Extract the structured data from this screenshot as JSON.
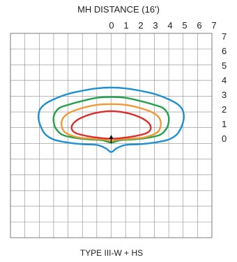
{
  "chart_data": {
    "type": "line",
    "title": "MH DISTANCE (16')",
    "caption": "TYPE III-W  +  HS",
    "x_ticks": [
      "0",
      "1",
      "2",
      "3",
      "4",
      "5",
      "6",
      "7"
    ],
    "y_ticks": [
      "7",
      "6",
      "5",
      "4",
      "3",
      "2",
      "1",
      "0"
    ],
    "xlim": [
      -7,
      7
    ],
    "ylim": [
      -6,
      7
    ],
    "grid": true,
    "fixture_position": [
      0,
      0.5
    ],
    "series": [
      {
        "color": "#1e8fd0",
        "points": [
          [
            0,
            3.55
          ],
          [
            1,
            3.5
          ],
          [
            2,
            3.35
          ],
          [
            3,
            3.15
          ],
          [
            4,
            2.8
          ],
          [
            4.6,
            2.5
          ],
          [
            4.95,
            2.15
          ],
          [
            5.05,
            1.7
          ],
          [
            4.95,
            1.2
          ],
          [
            4.6,
            0.6
          ],
          [
            4.0,
            0.25
          ],
          [
            3.0,
            0.05
          ],
          [
            2.0,
            -0.05
          ],
          [
            1.0,
            -0.1
          ],
          [
            0.4,
            -0.3
          ],
          [
            0,
            -0.55
          ],
          [
            -0.4,
            -0.3
          ],
          [
            -1.0,
            -0.1
          ],
          [
            -2.0,
            -0.05
          ],
          [
            -3.0,
            0.05
          ],
          [
            -4.0,
            0.25
          ],
          [
            -4.6,
            0.6
          ],
          [
            -4.95,
            1.2
          ],
          [
            -5.05,
            1.7
          ],
          [
            -4.95,
            2.15
          ],
          [
            -4.6,
            2.5
          ],
          [
            -4.0,
            2.8
          ],
          [
            -3.0,
            3.15
          ],
          [
            -2.0,
            3.35
          ],
          [
            -1.0,
            3.5
          ]
        ]
      },
      {
        "color": "#22a04b",
        "points": [
          [
            0,
            2.95
          ],
          [
            1,
            2.9
          ],
          [
            2,
            2.7
          ],
          [
            3,
            2.45
          ],
          [
            3.6,
            2.25
          ],
          [
            3.95,
            1.85
          ],
          [
            4.0,
            1.4
          ],
          [
            3.85,
            0.95
          ],
          [
            3.4,
            0.55
          ],
          [
            2.5,
            0.35
          ],
          [
            1.5,
            0.25
          ],
          [
            0.6,
            0.2
          ],
          [
            0,
            0.05
          ],
          [
            -0.6,
            0.2
          ],
          [
            -1.5,
            0.25
          ],
          [
            -2.5,
            0.35
          ],
          [
            -3.4,
            0.55
          ],
          [
            -3.85,
            0.95
          ],
          [
            -4.0,
            1.4
          ],
          [
            -3.95,
            1.85
          ],
          [
            -3.6,
            2.25
          ],
          [
            -3.0,
            2.45
          ],
          [
            -2.0,
            2.7
          ],
          [
            -1.0,
            2.9
          ]
        ]
      },
      {
        "color": "#f09a36",
        "points": [
          [
            0,
            2.5
          ],
          [
            1,
            2.45
          ],
          [
            2,
            2.25
          ],
          [
            2.9,
            1.95
          ],
          [
            3.35,
            1.6
          ],
          [
            3.45,
            1.15
          ],
          [
            3.2,
            0.7
          ],
          [
            2.4,
            0.4
          ],
          [
            1.5,
            0.3
          ],
          [
            0.5,
            0.25
          ],
          [
            0,
            0.15
          ],
          [
            -0.5,
            0.25
          ],
          [
            -1.5,
            0.3
          ],
          [
            -2.4,
            0.4
          ],
          [
            -3.2,
            0.7
          ],
          [
            -3.45,
            1.15
          ],
          [
            -3.35,
            1.6
          ],
          [
            -2.9,
            1.95
          ],
          [
            -2.0,
            2.25
          ],
          [
            -1.0,
            2.45
          ]
        ]
      },
      {
        "color": "#dd2c2c",
        "points": [
          [
            0,
            2.05
          ],
          [
            1,
            1.95
          ],
          [
            1.9,
            1.7
          ],
          [
            2.55,
            1.35
          ],
          [
            2.75,
            0.95
          ],
          [
            2.45,
            0.65
          ],
          [
            1.6,
            0.45
          ],
          [
            0.8,
            0.35
          ],
          [
            0,
            0.3
          ],
          [
            -0.8,
            0.35
          ],
          [
            -1.6,
            0.45
          ],
          [
            -2.45,
            0.65
          ],
          [
            -2.75,
            0.95
          ],
          [
            -2.55,
            1.35
          ],
          [
            -1.9,
            1.7
          ],
          [
            -1.0,
            1.95
          ]
        ]
      }
    ]
  }
}
